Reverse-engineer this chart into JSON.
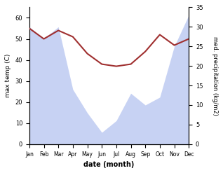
{
  "months": [
    "Jan",
    "Feb",
    "Mar",
    "Apr",
    "May",
    "Jun",
    "Jul",
    "Aug",
    "Sep",
    "Oct",
    "Nov",
    "Dec"
  ],
  "temp": [
    55,
    50,
    54,
    51,
    43,
    38,
    37,
    38,
    44,
    52,
    47,
    50
  ],
  "precip_area": [
    30,
    27,
    30,
    14,
    8,
    3,
    6,
    13,
    10,
    12,
    25,
    33
  ],
  "temp_color": "#a03030",
  "precip_color": "#aabbee",
  "precip_alpha": 0.65,
  "ylabel_left": "max temp (C)",
  "ylabel_right": "med. precipitation (kg/m2)",
  "xlabel": "date (month)",
  "ylim_left": [
    0,
    65
  ],
  "ylim_right": [
    0,
    35
  ],
  "yticks_left": [
    0,
    10,
    20,
    30,
    40,
    50,
    60
  ],
  "yticks_right": [
    0,
    5,
    10,
    15,
    20,
    25,
    30,
    35
  ]
}
